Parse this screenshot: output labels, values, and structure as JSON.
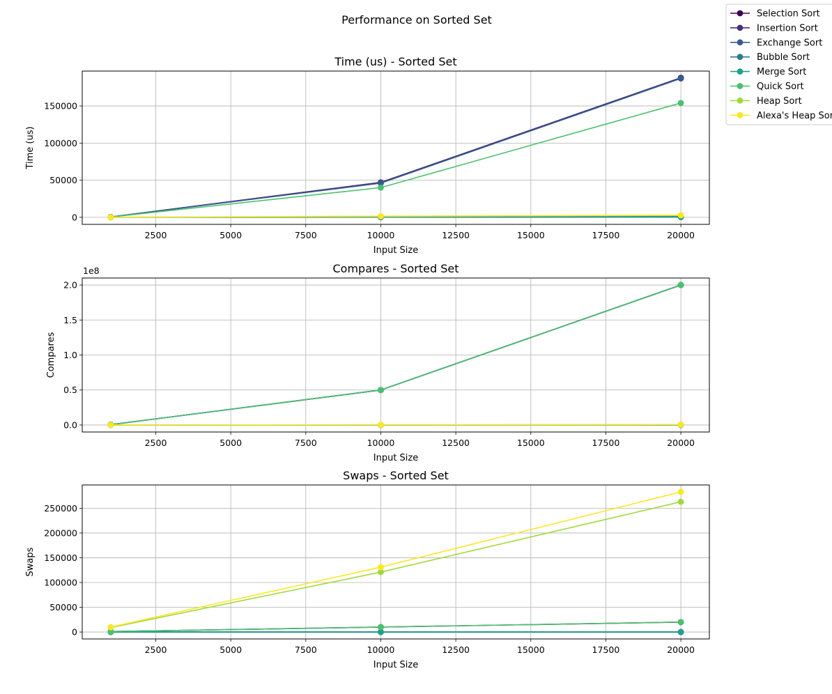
{
  "figure": {
    "suptitle": "Performance on Sorted Set"
  },
  "legend": {
    "entries": [
      {
        "name": "Selection Sort",
        "color": "#440154"
      },
      {
        "name": "Insertion Sort",
        "color": "#46327e"
      },
      {
        "name": "Exchange Sort",
        "color": "#365c8d"
      },
      {
        "name": "Bubble Sort",
        "color": "#277f8e"
      },
      {
        "name": "Merge Sort",
        "color": "#1fa187"
      },
      {
        "name": "Quick Sort",
        "color": "#4ac16d"
      },
      {
        "name": "Heap Sort",
        "color": "#a0da39"
      },
      {
        "name": "Alexa's Heap Sort",
        "color": "#fde725"
      }
    ],
    "placement": "upper-right-outside"
  },
  "chart_data": [
    {
      "type": "line",
      "title": "Time (us) - Sorted Set",
      "xlabel": "Input Size",
      "ylabel": "Time (us)",
      "offset_text": "",
      "grid": true,
      "xlim": [
        50,
        20950
      ],
      "ylim": [
        -9500,
        197000
      ],
      "xticks": [
        2500,
        5000,
        7500,
        10000,
        12500,
        15000,
        17500,
        20000
      ],
      "xtick_labels": [
        "2500",
        "5000",
        "7500",
        "10000",
        "12500",
        "15000",
        "17500",
        "20000"
      ],
      "yticks": [
        0,
        50000,
        100000,
        150000
      ],
      "ytick_labels": [
        "0",
        "50000",
        "100000",
        "150000"
      ],
      "x": [
        1000,
        10000,
        20000
      ],
      "series": [
        {
          "name": "Selection Sort",
          "values": [
            470,
            47000,
            188000
          ]
        },
        {
          "name": "Insertion Sort",
          "values": [
            470,
            47000,
            188000
          ]
        },
        {
          "name": "Exchange Sort",
          "values": [
            460,
            46000,
            187000
          ]
        },
        {
          "name": "Bubble Sort",
          "values": [
            20,
            150,
            300
          ]
        },
        {
          "name": "Merge Sort",
          "values": [
            60,
            600,
            1200
          ]
        },
        {
          "name": "Quick Sort",
          "values": [
            400,
            40000,
            154000
          ]
        },
        {
          "name": "Heap Sort",
          "values": [
            120,
            1300,
            2600
          ]
        },
        {
          "name": "Alexa's Heap Sort",
          "values": [
            130,
            1500,
            2900
          ]
        }
      ]
    },
    {
      "type": "line",
      "title": "Compares - Sorted Set",
      "xlabel": "Input Size",
      "ylabel": "Compares",
      "offset_text": "1e8",
      "grid": true,
      "xlim": [
        50,
        20950
      ],
      "ylim": [
        -10000000,
        210000000
      ],
      "xticks": [
        2500,
        5000,
        7500,
        10000,
        12500,
        15000,
        17500,
        20000
      ],
      "xtick_labels": [
        "2500",
        "5000",
        "7500",
        "10000",
        "12500",
        "15000",
        "17500",
        "20000"
      ],
      "yticks": [
        0,
        50000000,
        100000000,
        150000000,
        200000000
      ],
      "ytick_labels": [
        "0.0",
        "0.5",
        "1.0",
        "1.5",
        "2.0"
      ],
      "x": [
        1000,
        10000,
        20000
      ],
      "series": [
        {
          "name": "Selection Sort",
          "values": [
            499500,
            49995000,
            199990000
          ]
        },
        {
          "name": "Insertion Sort",
          "values": [
            499500,
            49995000,
            199990000
          ]
        },
        {
          "name": "Exchange Sort",
          "values": [
            499500,
            49995000,
            199990000
          ]
        },
        {
          "name": "Bubble Sort",
          "values": [
            999,
            9999,
            19999
          ]
        },
        {
          "name": "Merge Sort",
          "values": [
            5044,
            69008,
            148016
          ]
        },
        {
          "name": "Quick Sort",
          "values": [
            499500,
            49995000,
            199990000
          ]
        },
        {
          "name": "Heap Sort",
          "values": [
            17000,
            250000,
            540000
          ]
        },
        {
          "name": "Alexa's Heap Sort",
          "values": [
            19000,
            270000,
            580000
          ]
        }
      ]
    },
    {
      "type": "line",
      "title": "Swaps - Sorted Set",
      "xlabel": "Input Size",
      "ylabel": "Swaps",
      "offset_text": "",
      "grid": true,
      "xlim": [
        50,
        20950
      ],
      "ylim": [
        -14000,
        297000
      ],
      "xticks": [
        2500,
        5000,
        7500,
        10000,
        12500,
        15000,
        17500,
        20000
      ],
      "xtick_labels": [
        "2500",
        "5000",
        "7500",
        "10000",
        "12500",
        "15000",
        "17500",
        "20000"
      ],
      "yticks": [
        0,
        50000,
        100000,
        150000,
        200000,
        250000
      ],
      "ytick_labels": [
        "0",
        "50000",
        "100000",
        "150000",
        "200000",
        "250000"
      ],
      "x": [
        1000,
        10000,
        20000
      ],
      "series": [
        {
          "name": "Selection Sort",
          "values": [
            1000,
            10000,
            20000
          ]
        },
        {
          "name": "Insertion Sort",
          "values": [
            0,
            0,
            0
          ]
        },
        {
          "name": "Exchange Sort",
          "values": [
            0,
            0,
            0
          ]
        },
        {
          "name": "Bubble Sort",
          "values": [
            0,
            0,
            0
          ]
        },
        {
          "name": "Merge Sort",
          "values": [
            0,
            0,
            0
          ]
        },
        {
          "name": "Quick Sort",
          "values": [
            1000,
            10000,
            20000
          ]
        },
        {
          "name": "Heap Sort",
          "values": [
            9000,
            121000,
            263000
          ]
        },
        {
          "name": "Alexa's Heap Sort",
          "values": [
            10000,
            131000,
            283000
          ]
        }
      ]
    }
  ]
}
